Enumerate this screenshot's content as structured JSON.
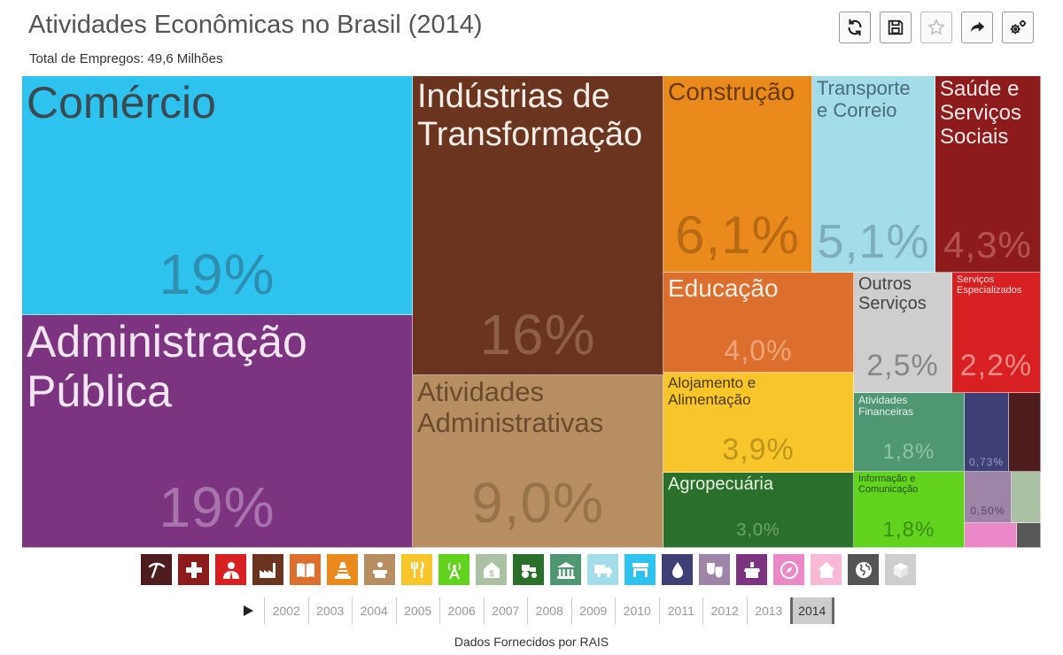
{
  "header": {
    "title": "Atividades Econômicas no Brasil (2014)",
    "subtitle": "Total de Empregos: 49,6 Milhões"
  },
  "toolbar": {
    "buttons": [
      {
        "icon": "refresh-icon"
      },
      {
        "icon": "save-icon"
      },
      {
        "icon": "star-icon"
      },
      {
        "icon": "share-icon"
      },
      {
        "icon": "settings-icon"
      }
    ]
  },
  "chart_data": {
    "type": "treemap",
    "title": "Atividades Econômicas no Brasil (2014)",
    "subtitle": "Total de Empregos: 49,6 Milhões",
    "unit": "% dos empregos",
    "items": [
      {
        "label": "Comércio",
        "value": 19,
        "value_label": "19%",
        "color": "#2EC2EF"
      },
      {
        "label": "Administração Pública",
        "value": 19,
        "value_label": "19%",
        "color": "#7D3480"
      },
      {
        "label": "Indústrias de Transformação",
        "value": 16,
        "value_label": "16%",
        "color": "#6A341E"
      },
      {
        "label": "Atividades Administrativas",
        "value": 9.0,
        "value_label": "9,0%",
        "color": "#B78E61"
      },
      {
        "label": "Construção",
        "value": 6.1,
        "value_label": "6,1%",
        "color": "#EA8A1D"
      },
      {
        "label": "Transporte e Correio",
        "value": 5.1,
        "value_label": "5,1%",
        "color": "#A4DDEA"
      },
      {
        "label": "Saúde e Serviços Sociais",
        "value": 4.3,
        "value_label": "4,3%",
        "color": "#8E1B1B"
      },
      {
        "label": "Educação",
        "value": 4.0,
        "value_label": "4,0%",
        "color": "#DC6F2E"
      },
      {
        "label": "Outros Serviços",
        "value": 2.5,
        "value_label": "2,5%",
        "color": "#CECECE"
      },
      {
        "label": "Serviços Especializados",
        "value": 2.2,
        "value_label": "2,2%",
        "color": "#D81F22"
      },
      {
        "label": "Alojamento e Alimentação",
        "value": 3.9,
        "value_label": "3,9%",
        "color": "#F8C52A"
      },
      {
        "label": "Atividades Financeiras",
        "value": 1.8,
        "value_label": "1,8%",
        "color": "#4F9672"
      },
      {
        "label": "",
        "value": 0.73,
        "value_label": "0,73%",
        "color": "#3E3F74"
      },
      {
        "label": "",
        "value": null,
        "value_label": "",
        "color": "#4E1C1C"
      },
      {
        "label": "Agropecuária",
        "value": 3.0,
        "value_label": "3,0%",
        "color": "#2A6F2A"
      },
      {
        "label": "Informação e Comunicação",
        "value": 1.8,
        "value_label": "1,8%",
        "color": "#62D31C"
      },
      {
        "label": "",
        "value": 0.5,
        "value_label": "0,50%",
        "color": "#9E85A8"
      },
      {
        "label": "",
        "value": null,
        "value_label": "",
        "color": "#ABC1A4"
      },
      {
        "label": "",
        "value": null,
        "value_label": "",
        "color": "#EB88C8"
      },
      {
        "label": "",
        "value": null,
        "value_label": "",
        "color": "#575757"
      }
    ]
  },
  "sector_icons": [
    {
      "icon": "pickaxe-icon",
      "color": "#4E1C1C"
    },
    {
      "icon": "health-cross-icon",
      "color": "#8E1B1B"
    },
    {
      "icon": "professional-person-icon",
      "color": "#D81F22"
    },
    {
      "icon": "factory-icon",
      "color": "#6A341E"
    },
    {
      "icon": "book-icon",
      "color": "#DC6F2E"
    },
    {
      "icon": "traffic-cone-icon",
      "color": "#EA8A1D"
    },
    {
      "icon": "administration-desk-icon",
      "color": "#B78E61"
    },
    {
      "icon": "fork-knife-icon",
      "color": "#F8C52A"
    },
    {
      "icon": "antenna-icon",
      "color": "#62D31C"
    },
    {
      "icon": "money-house-icon",
      "color": "#ABC1A4"
    },
    {
      "icon": "tractor-icon",
      "color": "#2A6F2A"
    },
    {
      "icon": "bank-building-icon",
      "color": "#4F9672"
    },
    {
      "icon": "truck-icon",
      "color": "#A4DDEA"
    },
    {
      "icon": "store-icon",
      "color": "#2EC2EF"
    },
    {
      "icon": "water-drop-icon",
      "color": "#3E3F74"
    },
    {
      "icon": "theater-masks-icon",
      "color": "#9E85A8"
    },
    {
      "icon": "public-admin-icon",
      "color": "#7D3480"
    },
    {
      "icon": "compass-icon",
      "color": "#EB88C8"
    },
    {
      "icon": "home-icon",
      "color": "#F9B9D6"
    },
    {
      "icon": "globe-icon",
      "color": "#555555"
    },
    {
      "icon": "boxes-icon",
      "color": "#CECECE"
    }
  ],
  "timeline": {
    "years": [
      "2002",
      "2003",
      "2004",
      "2005",
      "2006",
      "2007",
      "2008",
      "2009",
      "2010",
      "2011",
      "2012",
      "2013",
      "2014"
    ],
    "selected": "2014"
  },
  "footer": {
    "source": "Dados Fornecidos por RAIS"
  }
}
